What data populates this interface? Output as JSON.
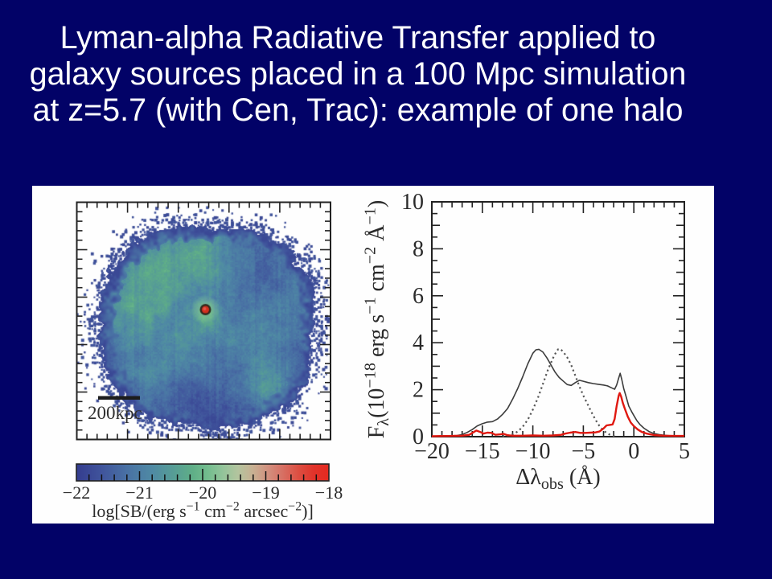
{
  "slide": {
    "background_color": "#020267",
    "title_color": "#ffffff",
    "title_lines": [
      "Lyman-alpha Radiative Transfer applied to",
      "galaxy sources placed in a 100 Mpc simulation",
      "at z=5.7 (with Cen, Trac): example of one halo"
    ]
  },
  "figure": {
    "background_color": "#fefefe",
    "halo_map": {
      "scalebar_label": "200kpc",
      "center_marker_color": "#d03020",
      "colorbar_tick_labels": [
        "−22",
        "−21",
        "−20",
        "−19",
        "−18"
      ],
      "colorbar_label_parts": [
        {
          "t": "log[SB/(erg s"
        },
        {
          "t": "−1",
          "sup": true
        },
        {
          "t": " cm"
        },
        {
          "t": "−2",
          "sup": true
        },
        {
          "t": " arcsec"
        },
        {
          "t": "−2",
          "sup": true
        },
        {
          "t": ")]"
        }
      ]
    },
    "spectrum": {
      "x_tick_labels": [
        "−20",
        "−15",
        "−10",
        "−5",
        "0",
        "5"
      ],
      "y_tick_labels": [
        "0",
        "2",
        "4",
        "6",
        "8",
        "10"
      ],
      "xlabel_parts": [
        {
          "t": "Δλ"
        },
        {
          "t": "obs",
          "sub": true
        },
        {
          "t": "  (Å)"
        }
      ],
      "ylabel_parts": [
        {
          "t": "F"
        },
        {
          "t": "λ",
          "sub": true
        },
        {
          "t": "(10"
        },
        {
          "t": "−18",
          "sup": true
        },
        {
          "t": " erg s"
        },
        {
          "t": "−1",
          "sup": true
        },
        {
          "t": " cm"
        },
        {
          "t": "−2",
          "sup": true
        },
        {
          "t": " Å"
        },
        {
          "t": "−1",
          "sup": true
        },
        {
          "t": ")"
        }
      ]
    }
  },
  "chart_data": [
    {
      "type": "heatmap",
      "title": "",
      "description": "Lyman-alpha surface-brightness map of one simulated halo; diffuse blue-green blob with red central source marker and 200kpc scale bar",
      "scalebar_label": "200kpc",
      "colorbar": {
        "ticks": [
          -22,
          -21,
          -20,
          -19,
          -18
        ],
        "label": "log[SB/(erg s^-1 cm^-2 arcsec^-2)]",
        "range": [
          -22,
          -18
        ],
        "orientation": "horizontal",
        "colormap_stops": [
          [
            0.0,
            "#343c8e"
          ],
          [
            0.1,
            "#40549c"
          ],
          [
            0.2,
            "#4971a4"
          ],
          [
            0.3,
            "#4f8aa4"
          ],
          [
            0.38,
            "#569c96"
          ],
          [
            0.46,
            "#5fae87"
          ],
          [
            0.52,
            "#73bd8e"
          ],
          [
            0.58,
            "#93c49a"
          ],
          [
            0.64,
            "#b3c49e"
          ],
          [
            0.7,
            "#c8b092"
          ],
          [
            0.76,
            "#d28f7e"
          ],
          [
            0.82,
            "#d76e62"
          ],
          [
            0.88,
            "#dc4e41"
          ],
          [
            0.94,
            "#e1332a"
          ],
          [
            1.0,
            "#e52a20"
          ]
        ]
      }
    },
    {
      "type": "line",
      "title": "",
      "xlabel": "Delta-lambda_obs (Angstrom)",
      "ylabel": "F_lambda (10^-18 erg s^-1 cm^-2 A^-1)",
      "xlim": [
        -20,
        5
      ],
      "ylim": [
        0,
        10
      ],
      "xticks": [
        -20,
        -15,
        -10,
        -5,
        0,
        5
      ],
      "yticks": [
        0,
        2,
        4,
        6,
        8,
        10
      ],
      "grid": false,
      "legend": null,
      "series": [
        {
          "name": "solid_black_curve",
          "style": "solid",
          "color": "#3c3c3c",
          "points": [
            [
              -20,
              0.02
            ],
            [
              -19,
              0.03
            ],
            [
              -18,
              0.04
            ],
            [
              -17.5,
              0.05
            ],
            [
              -17,
              0.09
            ],
            [
              -16.5,
              0.18
            ],
            [
              -16,
              0.3
            ],
            [
              -15.5,
              0.46
            ],
            [
              -15,
              0.55
            ],
            [
              -14.5,
              0.62
            ],
            [
              -14,
              0.64
            ],
            [
              -13.5,
              0.75
            ],
            [
              -13,
              0.95
            ],
            [
              -12.5,
              1.2
            ],
            [
              -12,
              1.6
            ],
            [
              -11.5,
              2.05
            ],
            [
              -11,
              2.55
            ],
            [
              -10.5,
              3.1
            ],
            [
              -10,
              3.55
            ],
            [
              -9.7,
              3.7
            ],
            [
              -9.4,
              3.72
            ],
            [
              -9,
              3.6
            ],
            [
              -8.6,
              3.35
            ],
            [
              -8.2,
              3.05
            ],
            [
              -7.8,
              2.75
            ],
            [
              -7.4,
              2.52
            ],
            [
              -7,
              2.37
            ],
            [
              -6.6,
              2.22
            ],
            [
              -6.2,
              2.18
            ],
            [
              -5.8,
              2.3
            ],
            [
              -5.4,
              2.4
            ],
            [
              -5,
              2.36
            ],
            [
              -4.5,
              2.3
            ],
            [
              -4,
              2.26
            ],
            [
              -3.5,
              2.23
            ],
            [
              -3,
              2.2
            ],
            [
              -2.6,
              2.16
            ],
            [
              -2.2,
              2.08
            ],
            [
              -1.9,
              2.02
            ],
            [
              -1.7,
              2.2
            ],
            [
              -1.5,
              2.5
            ],
            [
              -1.35,
              2.7
            ],
            [
              -1.2,
              2.45
            ],
            [
              -1,
              2.05
            ],
            [
              -0.8,
              1.75
            ],
            [
              -0.5,
              1.3
            ],
            [
              -0.2,
              1.05
            ],
            [
              0,
              0.9
            ],
            [
              0.3,
              0.68
            ],
            [
              0.6,
              0.52
            ],
            [
              1,
              0.36
            ],
            [
              1.5,
              0.22
            ],
            [
              2,
              0.13
            ],
            [
              2.5,
              0.09
            ],
            [
              3,
              0.06
            ],
            [
              3.5,
              0.04
            ],
            [
              4,
              0.03
            ],
            [
              5,
              0.02
            ]
          ]
        },
        {
          "name": "dotted_black_curve",
          "style": "dotted",
          "color": "#565656",
          "points": [
            [
              -13,
              0.02
            ],
            [
              -12.5,
              0.05
            ],
            [
              -12,
              0.1
            ],
            [
              -11.5,
              0.22
            ],
            [
              -11,
              0.42
            ],
            [
              -10.5,
              0.72
            ],
            [
              -10,
              1.15
            ],
            [
              -9.5,
              1.65
            ],
            [
              -9,
              2.25
            ],
            [
              -8.5,
              2.85
            ],
            [
              -8,
              3.35
            ],
            [
              -7.7,
              3.6
            ],
            [
              -7.5,
              3.72
            ],
            [
              -7.3,
              3.74
            ],
            [
              -7,
              3.62
            ],
            [
              -6.6,
              3.38
            ],
            [
              -6.2,
              3.05
            ],
            [
              -5.8,
              2.6
            ],
            [
              -5.4,
              2.15
            ],
            [
              -5,
              1.75
            ],
            [
              -4.6,
              1.4
            ],
            [
              -4.2,
              1.05
            ],
            [
              -3.8,
              0.72
            ],
            [
              -3.4,
              0.45
            ],
            [
              -3,
              0.26
            ],
            [
              -2.6,
              0.13
            ],
            [
              -2.2,
              0.05
            ],
            [
              -1.9,
              0.02
            ]
          ]
        },
        {
          "name": "red_curve",
          "style": "solid",
          "color": "#e01810",
          "points": [
            [
              -20,
              0.02
            ],
            [
              -18,
              0.03
            ],
            [
              -17,
              0.04
            ],
            [
              -16.3,
              0.08
            ],
            [
              -15.9,
              0.18
            ],
            [
              -15.6,
              0.26
            ],
            [
              -15.2,
              0.2
            ],
            [
              -14.9,
              0.13
            ],
            [
              -14.5,
              0.17
            ],
            [
              -14.1,
              0.16
            ],
            [
              -13.7,
              0.08
            ],
            [
              -13.2,
              0.1
            ],
            [
              -12.9,
              0.12
            ],
            [
              -12.5,
              0.06
            ],
            [
              -12,
              0.04
            ],
            [
              -11,
              0.04
            ],
            [
              -10,
              0.05
            ],
            [
              -9,
              0.04
            ],
            [
              -8,
              0.05
            ],
            [
              -7.2,
              0.08
            ],
            [
              -6.8,
              0.13
            ],
            [
              -6.3,
              0.17
            ],
            [
              -5.8,
              0.2
            ],
            [
              -5.3,
              0.16
            ],
            [
              -4.8,
              0.16
            ],
            [
              -4.3,
              0.17
            ],
            [
              -3.8,
              0.18
            ],
            [
              -3.4,
              0.22
            ],
            [
              -3,
              0.35
            ],
            [
              -2.7,
              0.48
            ],
            [
              -2.4,
              0.5
            ],
            [
              -2.1,
              0.52
            ],
            [
              -1.9,
              0.75
            ],
            [
              -1.7,
              1.3
            ],
            [
              -1.5,
              1.75
            ],
            [
              -1.4,
              1.86
            ],
            [
              -1.25,
              1.7
            ],
            [
              -1.1,
              1.45
            ],
            [
              -0.9,
              1.2
            ],
            [
              -0.6,
              0.85
            ],
            [
              -0.3,
              0.6
            ],
            [
              0,
              0.45
            ],
            [
              0.4,
              0.3
            ],
            [
              0.8,
              0.2
            ],
            [
              1.2,
              0.14
            ],
            [
              1.6,
              0.1
            ],
            [
              2,
              0.07
            ],
            [
              2.5,
              0.05
            ],
            [
              3,
              0.04
            ],
            [
              4,
              0.03
            ],
            [
              5,
              0.03
            ]
          ]
        }
      ]
    }
  ]
}
